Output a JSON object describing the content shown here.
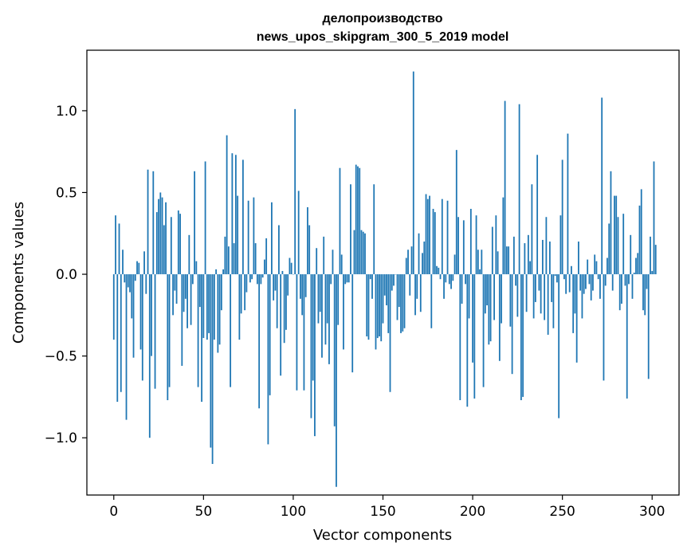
{
  "chart_data": {
    "type": "bar",
    "title_line1": "делопроизводство",
    "title_line2": "news_upos_skipgram_300_5_2019 model",
    "xlabel": "Vector components",
    "ylabel": "Components values",
    "xlim": [
      -15,
      315
    ],
    "ylim": [
      -1.35,
      1.37
    ],
    "xticks": [
      0,
      50,
      100,
      150,
      200,
      250,
      300
    ],
    "xtick_labels": [
      "0",
      "50",
      "100",
      "150",
      "200",
      "250",
      "300"
    ],
    "yticks": [
      -1.0,
      -0.5,
      0.0,
      0.5,
      1.0
    ],
    "ytick_labels": [
      "−1.0",
      "−0.5",
      "0.0",
      "0.5",
      "1.0"
    ],
    "bar_color": "#1f77b4",
    "grid": false,
    "values": [
      -0.4,
      0.36,
      -0.78,
      0.31,
      -0.72,
      0.15,
      -0.05,
      -0.89,
      -0.08,
      -0.11,
      -0.27,
      -0.51,
      -0.04,
      0.08,
      0.07,
      -0.46,
      -0.65,
      0.14,
      -0.12,
      0.64,
      -1.0,
      -0.5,
      0.63,
      -0.7,
      0.38,
      0.46,
      0.5,
      0.47,
      0.3,
      0.44,
      -0.77,
      -0.69,
      0.35,
      -0.25,
      -0.1,
      -0.18,
      0.39,
      0.37,
      -0.56,
      -0.23,
      -0.15,
      -0.33,
      0.24,
      -0.31,
      -0.06,
      0.63,
      0.08,
      -0.69,
      -0.2,
      -0.78,
      -0.39,
      0.69,
      -0.4,
      -0.36,
      -1.06,
      -1.16,
      -0.4,
      0.03,
      -0.48,
      -0.43,
      -0.22,
      0.03,
      0.23,
      0.85,
      0.17,
      -0.69,
      0.74,
      0.19,
      0.73,
      0.48,
      -0.4,
      -0.24,
      0.7,
      -0.22,
      -0.11,
      0.45,
      -0.05,
      -0.03,
      0.47,
      0.19,
      -0.06,
      -0.82,
      -0.06,
      -0.02,
      0.09,
      0.22,
      -1.04,
      -0.74,
      0.44,
      -0.16,
      -0.1,
      -0.33,
      0.3,
      -0.62,
      0.02,
      -0.42,
      -0.34,
      -0.13,
      0.1,
      0.07,
      0.0,
      1.01,
      -0.71,
      0.51,
      -0.15,
      -0.25,
      -0.71,
      -0.14,
      0.41,
      0.3,
      -0.88,
      -0.65,
      -0.99,
      0.16,
      -0.3,
      -0.23,
      -0.51,
      0.23,
      -0.43,
      -0.3,
      -0.55,
      -0.06,
      0.15,
      -0.93,
      -1.3,
      -0.31,
      0.65,
      0.12,
      -0.46,
      -0.06,
      -0.05,
      -0.05,
      0.55,
      -0.6,
      0.27,
      0.67,
      0.66,
      0.65,
      0.27,
      0.26,
      0.25,
      -0.38,
      -0.4,
      -0.03,
      -0.15,
      0.55,
      -0.46,
      -0.39,
      -0.38,
      -0.41,
      -0.3,
      -0.13,
      -0.19,
      -0.36,
      -0.72,
      -0.1,
      -0.07,
      0.0,
      -0.28,
      -0.2,
      -0.36,
      -0.35,
      -0.33,
      0.1,
      0.15,
      -0.13,
      0.17,
      1.24,
      -0.25,
      -0.15,
      0.25,
      -0.23,
      0.13,
      0.2,
      0.49,
      0.46,
      0.48,
      -0.33,
      0.4,
      0.38,
      0.05,
      0.04,
      -0.03,
      0.46,
      -0.15,
      -0.05,
      0.45,
      -0.06,
      -0.09,
      -0.04,
      0.12,
      0.76,
      0.35,
      -0.77,
      -0.18,
      0.33,
      -0.06,
      -0.81,
      -0.27,
      0.4,
      -0.54,
      -0.76,
      0.36,
      0.15,
      0.03,
      0.15,
      -0.69,
      -0.24,
      -0.19,
      -0.43,
      -0.41,
      0.29,
      -0.28,
      0.36,
      0.14,
      -0.53,
      -0.3,
      0.47,
      1.06,
      0.17,
      0.17,
      -0.32,
      -0.61,
      0.23,
      -0.07,
      -0.26,
      1.04,
      -0.77,
      -0.75,
      0.19,
      -0.23,
      0.24,
      0.08,
      0.55,
      -0.27,
      -0.17,
      0.73,
      -0.1,
      -0.24,
      0.21,
      -0.28,
      0.35,
      -0.37,
      0.2,
      -0.17,
      -0.33,
      -0.01,
      -0.05,
      -0.88,
      0.36,
      0.7,
      -0.03,
      -0.12,
      0.86,
      -0.11,
      0.05,
      -0.36,
      -0.24,
      -0.54,
      0.2,
      -0.1,
      -0.27,
      -0.12,
      -0.09,
      0.09,
      -0.06,
      -0.16,
      -0.1,
      0.12,
      0.08,
      -0.03,
      -0.15,
      1.08,
      -0.65,
      -0.07,
      0.1,
      0.31,
      0.63,
      -0.1,
      0.48,
      0.48,
      0.35,
      -0.22,
      -0.18,
      0.37,
      -0.07,
      -0.76,
      -0.06,
      0.24,
      -0.15,
      0.01,
      0.1,
      0.13,
      0.42,
      0.52,
      -0.22,
      -0.25,
      -0.09,
      -0.64,
      0.23,
      0.02,
      0.69,
      0.18
    ]
  }
}
